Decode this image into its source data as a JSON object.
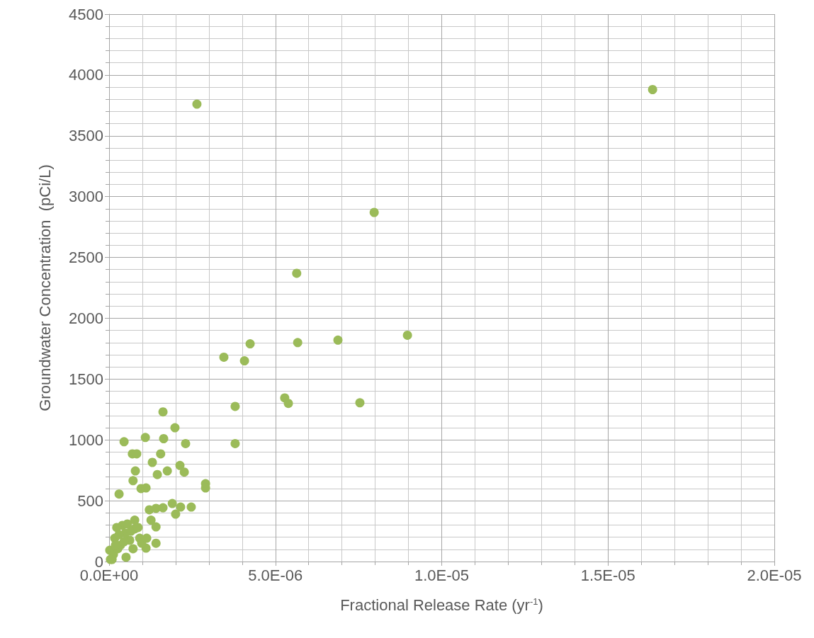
{
  "chart_data": {
    "type": "scatter",
    "xlabel": "Fractional Release Rate (yr$^{-1}$)",
    "ylabel": "Groundwater Concentration  (pCi/L)",
    "xlim": [
      0,
      2e-05
    ],
    "xticks": [
      {
        "value": 0,
        "label": "0.0E+00"
      },
      {
        "value": 5e-06,
        "label": "5.0E-06"
      },
      {
        "value": 1e-05,
        "label": "1.0E-05"
      },
      {
        "value": 1.5e-05,
        "label": "1.5E-05"
      },
      {
        "value": 2e-05,
        "label": "2.0E-05"
      }
    ],
    "ylim": [
      0,
      4500
    ],
    "yticks": [
      0,
      500,
      1000,
      1500,
      2000,
      2500,
      3000,
      3500,
      4000,
      4500
    ],
    "grid": true,
    "marker": "circle",
    "series": [
      {
        "color": "#9bbb59",
        "x": [
          2.64e-06,
          1.634e-05,
          7.97e-06,
          5.64e-06,
          8.97e-06,
          6.88e-06,
          5.67e-06,
          4.24e-06,
          3.45e-06,
          4.07e-06,
          5.28e-06,
          5.39e-06,
          7.54e-06,
          3.79e-06,
          3.79e-06,
          1.62e-06,
          1.98e-06,
          4.5e-07,
          1.09e-06,
          1.64e-06,
          2.3e-06,
          7e-07,
          8.3e-07,
          1.55e-06,
          1.3e-06,
          7.9e-07,
          1.75e-06,
          1.45e-06,
          2.13e-06,
          2.26e-06,
          7.2e-07,
          2.9e-06,
          2.9e-06,
          9.6e-07,
          1.11e-06,
          3e-07,
          1.21e-06,
          1.41e-06,
          1.62e-06,
          1.9e-06,
          2.15e-06,
          2e-06,
          2.47e-06,
          1.26e-06,
          1.41e-06,
          1.41e-06,
          1.11e-06,
          7.7e-07,
          4e-07,
          1.7e-07,
          2e-08,
          9e-08,
          6.2e-07,
          4.9e-07,
          9.2e-07,
          3.4e-07,
          7.7e-07,
          9.8e-07,
          1.13e-06,
          5.1e-07,
          2.3e-07,
          5.5e-07,
          1.3e-07,
          2.6e-07,
          6.6e-07,
          4.5e-07,
          8.7e-07,
          3e-07,
          4e-08,
          1.9e-07,
          7.2e-07
        ],
        "values": [
          3760,
          3880,
          2870,
          2370,
          1860,
          1820,
          1800,
          1790,
          1680,
          1650,
          1345,
          1300,
          1305,
          1275,
          970,
          1230,
          1100,
          985,
          1020,
          1010,
          970,
          885,
          885,
          885,
          815,
          745,
          745,
          715,
          790,
          735,
          665,
          640,
          605,
          600,
          605,
          555,
          425,
          437,
          442,
          477,
          448,
          390,
          448,
          340,
          285,
          150,
          110,
          340,
          297,
          192,
          93,
          17,
          175,
          233,
          192,
          134,
          268,
          151,
          192,
          35,
          280,
          309,
          58,
          105,
          250,
          163,
          280,
          221,
          17,
          134,
          105
        ]
      }
    ]
  }
}
